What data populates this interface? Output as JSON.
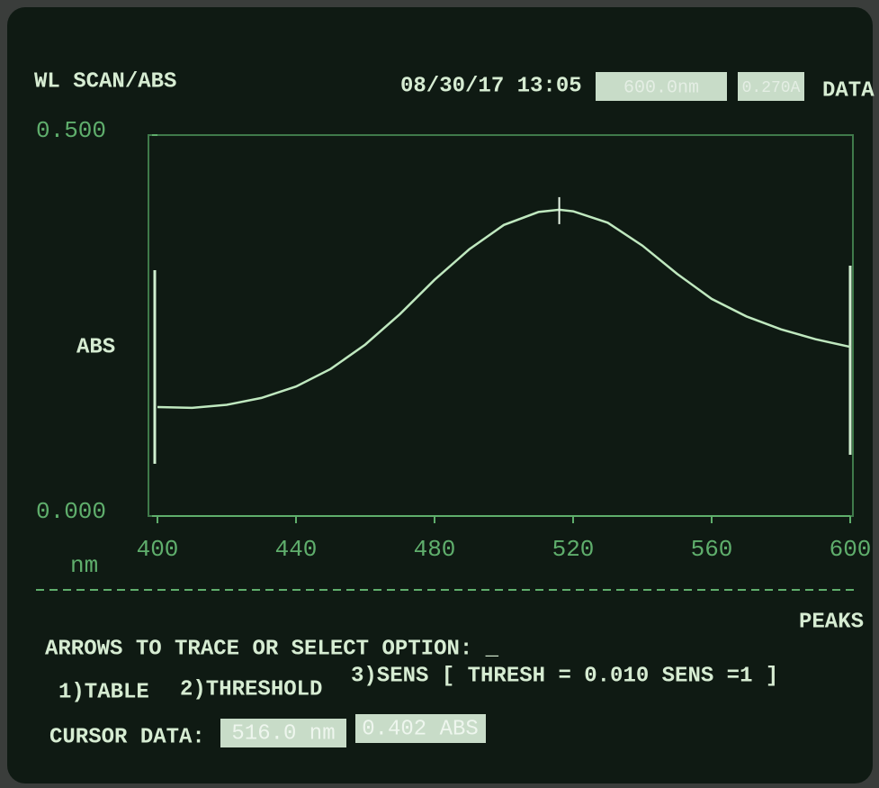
{
  "header": {
    "title": "WL SCAN/ABS",
    "datetime": "08/30/17 13:05",
    "wavelength_box": "600.0nm",
    "abs_box": "0.270A",
    "mode": "DATA"
  },
  "chart_data": {
    "type": "line",
    "ylabel": "ABS",
    "xlabel": "nm",
    "x": [
      400,
      410,
      420,
      430,
      440,
      450,
      460,
      470,
      480,
      490,
      500,
      510,
      516,
      520,
      530,
      540,
      550,
      560,
      570,
      580,
      590,
      600
    ],
    "values": [
      0.143,
      0.142,
      0.146,
      0.155,
      0.17,
      0.193,
      0.225,
      0.265,
      0.31,
      0.35,
      0.382,
      0.399,
      0.402,
      0.4,
      0.385,
      0.355,
      0.318,
      0.285,
      0.262,
      0.245,
      0.232,
      0.222
    ],
    "color": "#bfe8bf",
    "xlim": [
      400,
      600
    ],
    "xticks": [
      400,
      440,
      480,
      520,
      560,
      600
    ],
    "ylim": [
      0,
      0.5
    ],
    "yticks": [
      {
        "value": 0,
        "label": "0.000"
      },
      {
        "value": 0.5,
        "label": "0.500"
      }
    ],
    "cursor": {
      "x": 516,
      "value": 0.402,
      "x_label": "516.0 nm",
      "value_label": "0.402 ABS"
    }
  },
  "footer": {
    "menu_title": "PEAKS",
    "prompt": "ARROWS TO TRACE OR SELECT OPTION: _",
    "options": [
      "1)TABLE",
      "2)THRESHOLD",
      "3)SENS [ THRESH = 0.010 SENS =1 ]"
    ],
    "cursor_label": "CURSOR DATA:"
  }
}
